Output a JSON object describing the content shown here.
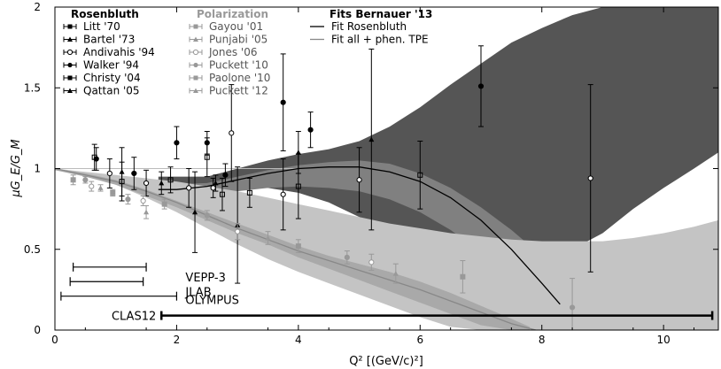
{
  "chart_data": {
    "type": "scatter",
    "xlabel": "Q² [(GeV/c)²]",
    "ylabel": "μG_E/G_M",
    "xlim": [
      0,
      10.9
    ],
    "ylim": [
      0,
      2
    ],
    "x_ticks": [
      "0",
      "2",
      "4",
      "6",
      "8",
      "10"
    ],
    "x_tick_values": [
      0,
      2,
      4,
      6,
      8,
      10
    ],
    "y_ticks": [
      "0",
      "0.5",
      "1",
      "1.5",
      "2"
    ],
    "y_tick_values": [
      0,
      0.5,
      1,
      1.5,
      2
    ],
    "grid": false,
    "legend_groups": [
      {
        "title": "Rosenbluth",
        "color": "#000000",
        "entries": [
          "Litt '70",
          "Bartel '73",
          "Andivahis '94",
          "Walker '94",
          "Christy '04",
          "Qattan '05"
        ]
      },
      {
        "title": "Polarization",
        "color": "#999999",
        "entries": [
          "Gayou '01",
          "Punjabi '05",
          "Jones '06",
          "Puckett '10",
          "Paolone '10",
          "Puckett '12"
        ]
      },
      {
        "title": "Fits Bernauer '13",
        "color": "#000000",
        "entries": [
          "Fit Rosenbluth",
          "Fit all + phen. TPE"
        ]
      }
    ],
    "bands": [
      {
        "name": "Fit Rosenbluth band outer",
        "color": "#555555",
        "x": [
          1.7,
          2.5,
          3.0,
          3.5,
          4.0,
          4.5,
          5.0,
          5.5,
          6.0,
          6.5,
          7.0,
          7.5,
          8.0,
          8.5,
          9.0,
          9.5,
          10.0,
          10.5,
          10.9
        ],
        "upper": [
          0.95,
          0.95,
          1.0,
          1.05,
          1.09,
          1.12,
          1.17,
          1.26,
          1.38,
          1.52,
          1.65,
          1.78,
          1.87,
          1.95,
          2.0,
          2.0,
          2.0,
          2.0,
          2.0
        ],
        "lower": [
          0.86,
          0.86,
          0.88,
          0.88,
          0.85,
          0.79,
          0.7,
          0.59,
          0.5,
          0.44,
          0.41,
          0.4,
          0.43,
          0.5,
          0.6,
          0.75,
          0.88,
          1.0,
          1.1
        ]
      },
      {
        "name": "Fit Rosenbluth band inner",
        "color": "#808080",
        "x": [
          1.7,
          2.5,
          3.0,
          3.5,
          4.0,
          4.5,
          5.0,
          5.5,
          6.0,
          6.5,
          7.0,
          7.5,
          8.0,
          8.5
        ],
        "upper": [
          0.9,
          0.91,
          0.95,
          0.99,
          1.02,
          1.04,
          1.05,
          1.03,
          0.97,
          0.88,
          0.76,
          0.62,
          0.46,
          0.28
        ],
        "lower": [
          0.84,
          0.84,
          0.86,
          0.88,
          0.89,
          0.88,
          0.86,
          0.81,
          0.73,
          0.62,
          0.48,
          0.32,
          0.14,
          0.0
        ]
      },
      {
        "name": "Fit all + phen. TPE band",
        "color": "#c4c4c4",
        "x": [
          0,
          0.5,
          1.0,
          1.5,
          2.0,
          2.5,
          3.0,
          3.5,
          4.0,
          4.5,
          5.0,
          5.5,
          6.0,
          6.5,
          7.0,
          7.5,
          8.0,
          8.5,
          9.0,
          9.5,
          10.0,
          10.5,
          10.9
        ],
        "upper": [
          1.0,
          0.98,
          0.96,
          0.94,
          0.92,
          0.89,
          0.86,
          0.82,
          0.78,
          0.74,
          0.7,
          0.66,
          0.63,
          0.6,
          0.58,
          0.56,
          0.55,
          0.55,
          0.55,
          0.57,
          0.6,
          0.64,
          0.68
        ],
        "lower": [
          0.99,
          0.96,
          0.9,
          0.82,
          0.73,
          0.63,
          0.53,
          0.44,
          0.36,
          0.29,
          0.22,
          0.15,
          0.08,
          0.02,
          0.0,
          0.0,
          0.0,
          0.0,
          0.0,
          0.0,
          0.0,
          0.0,
          0.0
        ]
      },
      {
        "name": "Fit all + phen. TPE band inner",
        "color": "#a9a9a9",
        "x": [
          0,
          0.5,
          1.0,
          1.5,
          2.0,
          2.5,
          3.0,
          3.5,
          4.0,
          4.5,
          5.0,
          5.5,
          6.0,
          6.5,
          7.0,
          7.5,
          7.8
        ],
        "upper": [
          1.0,
          0.97,
          0.93,
          0.87,
          0.8,
          0.73,
          0.66,
          0.59,
          0.52,
          0.46,
          0.41,
          0.36,
          0.3,
          0.23,
          0.15,
          0.07,
          0.02
        ],
        "lower": [
          0.99,
          0.95,
          0.9,
          0.83,
          0.76,
          0.68,
          0.6,
          0.53,
          0.45,
          0.38,
          0.31,
          0.24,
          0.17,
          0.1,
          0.03,
          0.0,
          0.0
        ]
      }
    ],
    "lines": [
      {
        "name": "Fit Rosenbluth",
        "color": "#000000",
        "x": [
          1.7,
          2.0,
          2.5,
          3.0,
          3.5,
          4.0,
          4.5,
          5.0,
          5.5,
          6.0,
          6.5,
          7.0,
          7.5,
          8.0,
          8.3
        ],
        "y": [
          0.87,
          0.87,
          0.89,
          0.93,
          0.97,
          1.0,
          1.01,
          1.01,
          0.98,
          0.92,
          0.82,
          0.68,
          0.5,
          0.29,
          0.16
        ]
      },
      {
        "name": "Fit all + phen. TPE",
        "color": "#888888",
        "x": [
          0,
          0.5,
          1.0,
          1.5,
          2.0,
          2.5,
          3.0,
          3.5,
          4.0,
          4.5,
          5.0,
          5.5,
          6.0,
          6.5,
          7.0,
          7.5,
          7.9
        ],
        "y": [
          1.0,
          0.96,
          0.92,
          0.86,
          0.79,
          0.71,
          0.63,
          0.56,
          0.49,
          0.43,
          0.37,
          0.31,
          0.25,
          0.18,
          0.11,
          0.04,
          0.0
        ]
      }
    ],
    "reference_line": {
      "y": 1.0,
      "xlim": [
        0,
        4.0
      ],
      "color": "#bbbbbb"
    },
    "series": [
      {
        "name": "Rosenbluth points",
        "color": "#000000",
        "points": [
          {
            "x": 0.65,
            "y": 1.07,
            "err": 0.08
          },
          {
            "x": 0.68,
            "y": 1.06,
            "err": 0.07
          },
          {
            "x": 0.9,
            "y": 0.97,
            "err": 0.09
          },
          {
            "x": 1.1,
            "y": 0.98,
            "err": 0.15
          },
          {
            "x": 1.1,
            "y": 0.92,
            "err": 0.12
          },
          {
            "x": 1.3,
            "y": 0.97,
            "err": 0.1
          },
          {
            "x": 1.5,
            "y": 0.91,
            "err": 0.08
          },
          {
            "x": 1.75,
            "y": 0.91,
            "err": 0.07
          },
          {
            "x": 1.9,
            "y": 0.93,
            "err": 0.08
          },
          {
            "x": 2.0,
            "y": 1.16,
            "err": 0.1
          },
          {
            "x": 2.2,
            "y": 0.88,
            "err": 0.12
          },
          {
            "x": 2.3,
            "y": 0.73,
            "err": 0.25
          },
          {
            "x": 2.5,
            "y": 1.07,
            "err": 0.12
          },
          {
            "x": 2.5,
            "y": 1.16,
            "err": 0.07
          },
          {
            "x": 2.6,
            "y": 0.88,
            "err": 0.06
          },
          {
            "x": 2.64,
            "y": 0.91,
            "err": 0.05
          },
          {
            "x": 2.75,
            "y": 0.84,
            "err": 0.1
          },
          {
            "x": 2.8,
            "y": 0.96,
            "err": 0.07
          },
          {
            "x": 2.9,
            "y": 1.22,
            "err": 0.3
          },
          {
            "x": 3.0,
            "y": 0.65,
            "err": 0.36
          },
          {
            "x": 3.2,
            "y": 0.85,
            "err": 0.09
          },
          {
            "x": 3.75,
            "y": 1.41,
            "err": 0.3
          },
          {
            "x": 3.75,
            "y": 0.84,
            "err": 0.22
          },
          {
            "x": 4.0,
            "y": 1.1,
            "err": 0.13
          },
          {
            "x": 4.0,
            "y": 0.89,
            "err": 0.2
          },
          {
            "x": 4.2,
            "y": 1.24,
            "err": 0.11
          },
          {
            "x": 5.0,
            "y": 0.93,
            "err": 0.2
          },
          {
            "x": 5.2,
            "y": 1.18,
            "err": 0.56
          },
          {
            "x": 6.0,
            "y": 0.96,
            "err": 0.21
          },
          {
            "x": 7.0,
            "y": 1.51,
            "err": 0.25
          },
          {
            "x": 8.8,
            "y": 0.94,
            "err": 0.58
          }
        ]
      },
      {
        "name": "Polarization points",
        "color": "#999999",
        "points": [
          {
            "x": 0.3,
            "y": 0.93,
            "err": 0.03
          },
          {
            "x": 0.5,
            "y": 0.93,
            "err": 0.02
          },
          {
            "x": 0.6,
            "y": 0.89,
            "err": 0.03
          },
          {
            "x": 0.75,
            "y": 0.88,
            "err": 0.02
          },
          {
            "x": 0.95,
            "y": 0.85,
            "err": 0.02
          },
          {
            "x": 1.2,
            "y": 0.81,
            "err": 0.03
          },
          {
            "x": 1.45,
            "y": 0.8,
            "err": 0.03
          },
          {
            "x": 1.5,
            "y": 0.73,
            "err": 0.04
          },
          {
            "x": 1.8,
            "y": 0.78,
            "err": 0.03
          },
          {
            "x": 2.5,
            "y": 0.71,
            "err": 0.03
          },
          {
            "x": 3.0,
            "y": 0.61,
            "err": 0.05
          },
          {
            "x": 3.5,
            "y": 0.57,
            "err": 0.04
          },
          {
            "x": 4.0,
            "y": 0.52,
            "err": 0.04
          },
          {
            "x": 4.8,
            "y": 0.45,
            "err": 0.04
          },
          {
            "x": 5.2,
            "y": 0.42,
            "err": 0.05
          },
          {
            "x": 5.6,
            "y": 0.35,
            "err": 0.06
          },
          {
            "x": 6.7,
            "y": 0.33,
            "err": 0.1
          },
          {
            "x": 8.5,
            "y": 0.14,
            "err": 0.18
          }
        ]
      }
    ],
    "projections": [
      {
        "label": "VEPP-3",
        "x_min": 0.3,
        "x_max": 1.5,
        "y": 0.39
      },
      {
        "label": "JLAB",
        "x_min": 0.25,
        "x_max": 1.45,
        "y": 0.3
      },
      {
        "label": "OLYMPUS",
        "x_min": 0.1,
        "x_max": 2.0,
        "y": 0.21
      },
      {
        "label": "CLAS12",
        "x_min": 1.75,
        "x_max": 10.8,
        "y": 0.09
      }
    ]
  }
}
